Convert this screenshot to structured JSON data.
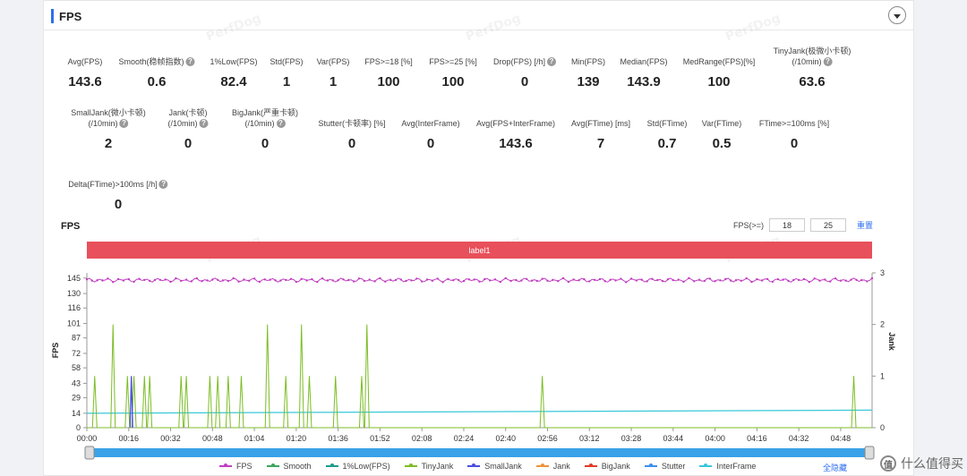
{
  "panel": {
    "title": "FPS"
  },
  "stats_row1": [
    {
      "label": "Avg(FPS)",
      "value": "143.6",
      "help": false
    },
    {
      "label": "Smooth(稳帧指数)",
      "value": "0.6",
      "help": true
    },
    {
      "label": "1%Low(FPS)",
      "value": "82.4",
      "help": false
    },
    {
      "label": "Std(FPS)",
      "value": "1",
      "help": false
    },
    {
      "label": "Var(FPS)",
      "value": "1",
      "help": false
    },
    {
      "label": "FPS>=18 [%]",
      "value": "100",
      "help": false
    },
    {
      "label": "FPS>=25 [%]",
      "value": "100",
      "help": false
    },
    {
      "label": "Drop(FPS) [/h]",
      "value": "0",
      "help": true
    },
    {
      "label": "Min(FPS)",
      "value": "139",
      "help": false
    },
    {
      "label": "Median(FPS)",
      "value": "143.9",
      "help": false
    },
    {
      "label": "MedRange(FPS)[%]",
      "value": "100",
      "help": false
    },
    {
      "label": "TinyJank(极微小卡顿)",
      "label2": "(/10min)",
      "value": "63.6",
      "help": true
    }
  ],
  "stats_row2": [
    {
      "label": "SmallJank(微小卡顿)",
      "label2": "(/10min)",
      "value": "2",
      "help": true
    },
    {
      "label": "Jank(卡顿)",
      "label2": "(/10min)",
      "value": "0",
      "help": true
    },
    {
      "label": "BigJank(严重卡顿)",
      "label2": "(/10min)",
      "value": "0",
      "help": true
    },
    {
      "label": "Stutter(卡顿率) [%]",
      "value": "0",
      "help": false
    },
    {
      "label": "Avg(InterFrame)",
      "value": "0",
      "help": false
    },
    {
      "label": "Avg(FPS+InterFrame)",
      "value": "143.6",
      "help": false
    },
    {
      "label": "Avg(FTime) [ms]",
      "value": "7",
      "help": false
    },
    {
      "label": "Std(FTime)",
      "value": "0.7",
      "help": false
    },
    {
      "label": "Var(FTime)",
      "value": "0.5",
      "help": false
    },
    {
      "label": "FTime>=100ms [%]",
      "value": "0",
      "help": false
    }
  ],
  "stats_row3": [
    {
      "label": "Delta(FTime)>100ms [/h]",
      "value": "0",
      "help": true
    }
  ],
  "chart_header": {
    "title": "FPS",
    "fps_threshold_label": "FPS(>=)",
    "threshold1": "18",
    "threshold2": "25",
    "reset_label": "重置"
  },
  "label_bar": "label1",
  "watermark": "PerfDog",
  "chart_data": {
    "type": "line",
    "ylabel": "FPS",
    "y2label": "Jank",
    "y_ticks": [
      "0",
      "14",
      "29",
      "43",
      "58",
      "72",
      "87",
      "101",
      "116",
      "130",
      "145"
    ],
    "y2_ticks": [
      "0",
      "1",
      "2",
      "3"
    ],
    "x_ticks": [
      "00:00",
      "00:16",
      "00:32",
      "00:48",
      "01:04",
      "01:20",
      "01:36",
      "01:52",
      "02:08",
      "02:24",
      "02:40",
      "02:56",
      "03:12",
      "03:28",
      "03:44",
      "04:00",
      "04:16",
      "04:32",
      "04:48"
    ],
    "ylim": [
      0,
      150
    ],
    "y2lim": [
      0,
      3
    ],
    "fps_level": 143,
    "onepercent_low_start": 14,
    "onepercent_low_end": 17,
    "tinyjank_spikes": [
      {
        "t": 3,
        "v": 1
      },
      {
        "t": 10,
        "v": 2
      },
      {
        "t": 15.5,
        "v": 1
      },
      {
        "t": 18,
        "v": 1
      },
      {
        "t": 22,
        "v": 1
      },
      {
        "t": 24,
        "v": 1
      },
      {
        "t": 36,
        "v": 1
      },
      {
        "t": 38,
        "v": 1
      },
      {
        "t": 47,
        "v": 1
      },
      {
        "t": 50,
        "v": 1
      },
      {
        "t": 54,
        "v": 1
      },
      {
        "t": 59,
        "v": 1
      },
      {
        "t": 69,
        "v": 2
      },
      {
        "t": 76,
        "v": 1
      },
      {
        "t": 82,
        "v": 2
      },
      {
        "t": 85,
        "v": 1
      },
      {
        "t": 95,
        "v": 1
      },
      {
        "t": 105,
        "v": 1
      },
      {
        "t": 107,
        "v": 2
      },
      {
        "t": 174,
        "v": 1
      },
      {
        "t": 293,
        "v": 1
      }
    ],
    "smalljank_spikes": [
      {
        "t": 17,
        "v": 1
      }
    ],
    "x_max_seconds": 300
  },
  "legend": [
    {
      "name": "FPS",
      "color": "#c23fc2"
    },
    {
      "name": "Smooth",
      "color": "#3aa65a"
    },
    {
      "name": "1%Low(FPS)",
      "color": "#1a9c8c"
    },
    {
      "name": "TinyJank",
      "color": "#7cbd25"
    },
    {
      "name": "SmallJank",
      "color": "#4a4ee0"
    },
    {
      "name": "Jank",
      "color": "#f0923a"
    },
    {
      "name": "BigJank",
      "color": "#e03a2a"
    },
    {
      "name": "Stutter",
      "color": "#3a8ff0"
    },
    {
      "name": "InterFrame",
      "color": "#38c8d8"
    }
  ],
  "hide_all_label": "全隐藏",
  "corner_logo": "什么值得买",
  "corner_logo_glyph": "值"
}
